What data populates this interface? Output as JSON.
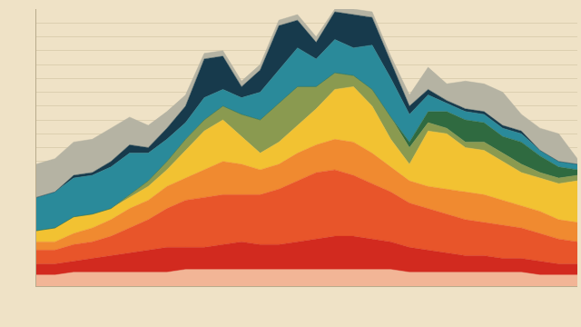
{
  "chart_data": {
    "type": "area",
    "stacked": true,
    "grid": true,
    "tick_labels": false,
    "categories": [
      null,
      null,
      null,
      null,
      null,
      null,
      null,
      null,
      null,
      null,
      null,
      null,
      null,
      null,
      null,
      null,
      null,
      null,
      null,
      null,
      null,
      null,
      null,
      null,
      null,
      null,
      null,
      null,
      null,
      null
    ],
    "ylim": [
      0,
      100
    ],
    "yticks": [
      0,
      5,
      10,
      15,
      20,
      25,
      30,
      35,
      40,
      45,
      50,
      55,
      60,
      65,
      70,
      75,
      80,
      85,
      90,
      95,
      100
    ],
    "series": [
      {
        "color": "#f2b596",
        "values": [
          4,
          4,
          5,
          5,
          5,
          5,
          5,
          5,
          6,
          6,
          6,
          6,
          6,
          6,
          6,
          6,
          6,
          6,
          6,
          6,
          5,
          5,
          5,
          5,
          5,
          5,
          5,
          4,
          4,
          4
        ]
      },
      {
        "color": "#d22a1f",
        "values": [
          4,
          4,
          4,
          5,
          6,
          7,
          8,
          9,
          8,
          8,
          9,
          10,
          9,
          9,
          10,
          11,
          12,
          12,
          11,
          10,
          9,
          8,
          7,
          6,
          6,
          5,
          5,
          5,
          4,
          4
        ]
      },
      {
        "color": "#e8552a",
        "values": [
          5,
          5,
          6,
          6,
          7,
          9,
          11,
          14,
          17,
          18,
          18,
          17,
          18,
          20,
          22,
          24,
          24,
          22,
          20,
          18,
          16,
          15,
          14,
          13,
          12,
          12,
          11,
          10,
          9,
          8
        ]
      },
      {
        "color": "#f08a30",
        "values": [
          3,
          3,
          4,
          5,
          6,
          7,
          7,
          8,
          8,
          10,
          12,
          11,
          9,
          9,
          10,
          10,
          11,
          12,
          11,
          9,
          8,
          8,
          9,
          10,
          10,
          9,
          8,
          8,
          7,
          7
        ]
      },
      {
        "color": "#f2c232",
        "values": [
          4,
          5,
          6,
          5,
          4,
          4,
          5,
          6,
          10,
          14,
          15,
          10,
          6,
          8,
          10,
          13,
          18,
          20,
          17,
          10,
          6,
          20,
          20,
          16,
          16,
          14,
          12,
          12,
          13,
          15
        ]
      },
      {
        "color": "#8a9a50",
        "values": [
          0,
          0,
          0,
          0,
          0,
          1,
          2,
          3,
          4,
          4,
          5,
          8,
          12,
          14,
          14,
          8,
          6,
          4,
          6,
          8,
          6,
          3,
          2,
          2,
          3,
          3,
          3,
          2,
          2,
          2
        ]
      },
      {
        "color": "#2f6a40",
        "values": [
          0,
          0,
          0,
          0,
          0,
          0,
          0,
          0,
          0,
          0,
          0,
          0,
          0,
          0,
          0,
          0,
          0,
          0,
          0,
          0,
          2,
          4,
          6,
          8,
          7,
          6,
          8,
          6,
          4,
          2
        ]
      },
      {
        "color": "#2a8a9a",
        "values": [
          12,
          13,
          14,
          14,
          15,
          15,
          10,
          8,
          6,
          8,
          6,
          6,
          10,
          12,
          14,
          10,
          12,
          10,
          16,
          14,
          10,
          6,
          3,
          3,
          3,
          3,
          3,
          2,
          2,
          2
        ]
      },
      {
        "color": "#173a4c",
        "values": [
          0,
          0,
          1,
          1,
          2,
          3,
          2,
          4,
          6,
          14,
          12,
          4,
          8,
          16,
          10,
          6,
          10,
          12,
          10,
          6,
          3,
          2,
          1,
          1,
          1,
          1,
          1,
          0,
          0,
          0
        ]
      },
      {
        "color": "#b5b3a3",
        "values": [
          12,
          12,
          12,
          12,
          12,
          10,
          8,
          6,
          4,
          2,
          2,
          2,
          2,
          2,
          2,
          2,
          1,
          2,
          2,
          2,
          4,
          8,
          6,
          10,
          10,
          12,
          6,
          8,
          10,
          2
        ]
      }
    ]
  }
}
